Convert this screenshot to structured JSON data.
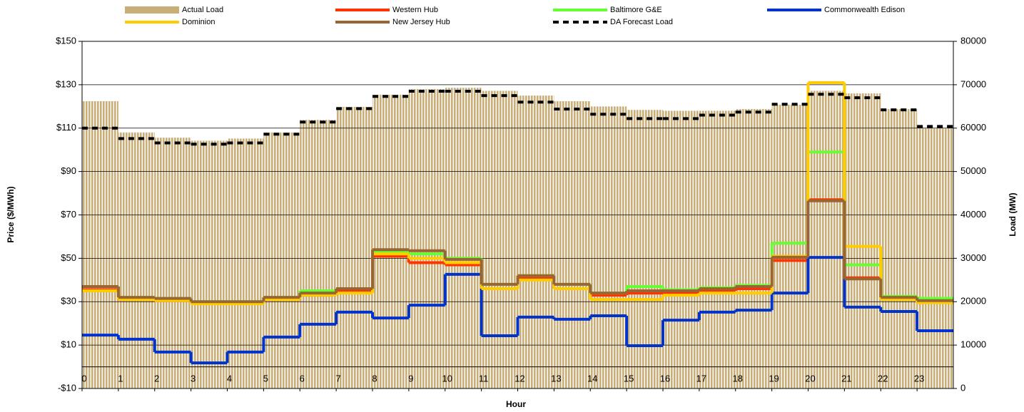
{
  "chart_data": {
    "type": "combo",
    "xlabel": "Hour",
    "ylabel": "Price ($/MWh)",
    "y2label": "Load (MW)",
    "x": [
      0,
      1,
      2,
      3,
      4,
      5,
      6,
      7,
      8,
      9,
      10,
      11,
      12,
      13,
      14,
      15,
      16,
      17,
      18,
      19,
      20,
      21,
      22,
      23
    ],
    "xlim": [
      0,
      24
    ],
    "xticks": [
      0,
      1,
      2,
      3,
      4,
      5,
      6,
      7,
      8,
      9,
      10,
      11,
      12,
      13,
      14,
      15,
      16,
      17,
      18,
      19,
      20,
      21,
      22,
      23
    ],
    "ylim": [
      -10,
      150
    ],
    "yticks": [
      {
        "value": -10,
        "label": "-$10"
      },
      {
        "value": 10,
        "label": "$10"
      },
      {
        "value": 30,
        "label": "$30"
      },
      {
        "value": 50,
        "label": "$50"
      },
      {
        "value": 70,
        "label": "$70"
      },
      {
        "value": 90,
        "label": "$90"
      },
      {
        "value": 110,
        "label": "$110"
      },
      {
        "value": 130,
        "label": "$130"
      },
      {
        "value": 150,
        "label": "$150"
      }
    ],
    "y2lim": [
      0,
      80000
    ],
    "y2ticks": [
      0,
      10000,
      20000,
      30000,
      40000,
      50000,
      60000,
      70000,
      80000
    ],
    "grid": true,
    "series": [
      {
        "name": "Actual Load",
        "style": "bar",
        "axis": "y2",
        "color": "#c9ae78",
        "values": [
          66200,
          59000,
          57800,
          57100,
          57600,
          59000,
          61900,
          64900,
          67700,
          69000,
          69300,
          68600,
          67500,
          66200,
          65000,
          64200,
          64000,
          64000,
          64400,
          65400,
          68600,
          68000,
          64400,
          59900
        ]
      },
      {
        "name": "Western Hub",
        "style": "step",
        "color": "#ff3300",
        "values": [
          35.5,
          31,
          30.5,
          29.5,
          29.5,
          31,
          33,
          35,
          51,
          48,
          47,
          36,
          41,
          36,
          33,
          34,
          34,
          35,
          36,
          49,
          77,
          41,
          32,
          30
        ]
      },
      {
        "name": "Baltimore G&E",
        "style": "step",
        "color": "#66ff33",
        "values": [
          37,
          32,
          31.5,
          30,
          30,
          32,
          35,
          36,
          53,
          52,
          50,
          38,
          42,
          38,
          34,
          37,
          35.5,
          36.5,
          37.5,
          57,
          99,
          47,
          32.5,
          31.5
        ]
      },
      {
        "name": "Commonwealth Edison",
        "style": "step",
        "color": "#0033cc",
        "values": [
          14.6,
          12.7,
          6.8,
          1.8,
          6.8,
          13.7,
          19.6,
          25.2,
          22.5,
          28.4,
          42.6,
          14.3,
          22.9,
          21.9,
          23.5,
          9.7,
          21.5,
          25.2,
          26.1,
          34,
          50.4,
          27.5,
          25.5,
          16.6
        ]
      },
      {
        "name": "Dominion",
        "style": "step",
        "color": "#ffcc00",
        "values": [
          35,
          31,
          30.5,
          29,
          29,
          31,
          33,
          34,
          52,
          50,
          48,
          36,
          40,
          36,
          31,
          31,
          33,
          34,
          34,
          51,
          131,
          55.5,
          31,
          29.5
        ]
      },
      {
        "name": "New Jersey Hub",
        "style": "step",
        "color": "#996633",
        "values": [
          37,
          32,
          31.5,
          30,
          30,
          32,
          34,
          36,
          54,
          53.5,
          49.5,
          38,
          42,
          38,
          34,
          35,
          35,
          36,
          37,
          50.5,
          76.5,
          40.5,
          32,
          30.5
        ]
      },
      {
        "name": "DA Forecast Load",
        "style": "dashed",
        "axis": "y2",
        "color": "#000000",
        "values": [
          60000,
          57600,
          56600,
          56300,
          56600,
          58600,
          61400,
          64500,
          67300,
          68500,
          68500,
          67500,
          66000,
          64400,
          63200,
          62200,
          62200,
          63000,
          63700,
          65500,
          67800,
          67000,
          64200,
          60400
        ]
      }
    ]
  }
}
